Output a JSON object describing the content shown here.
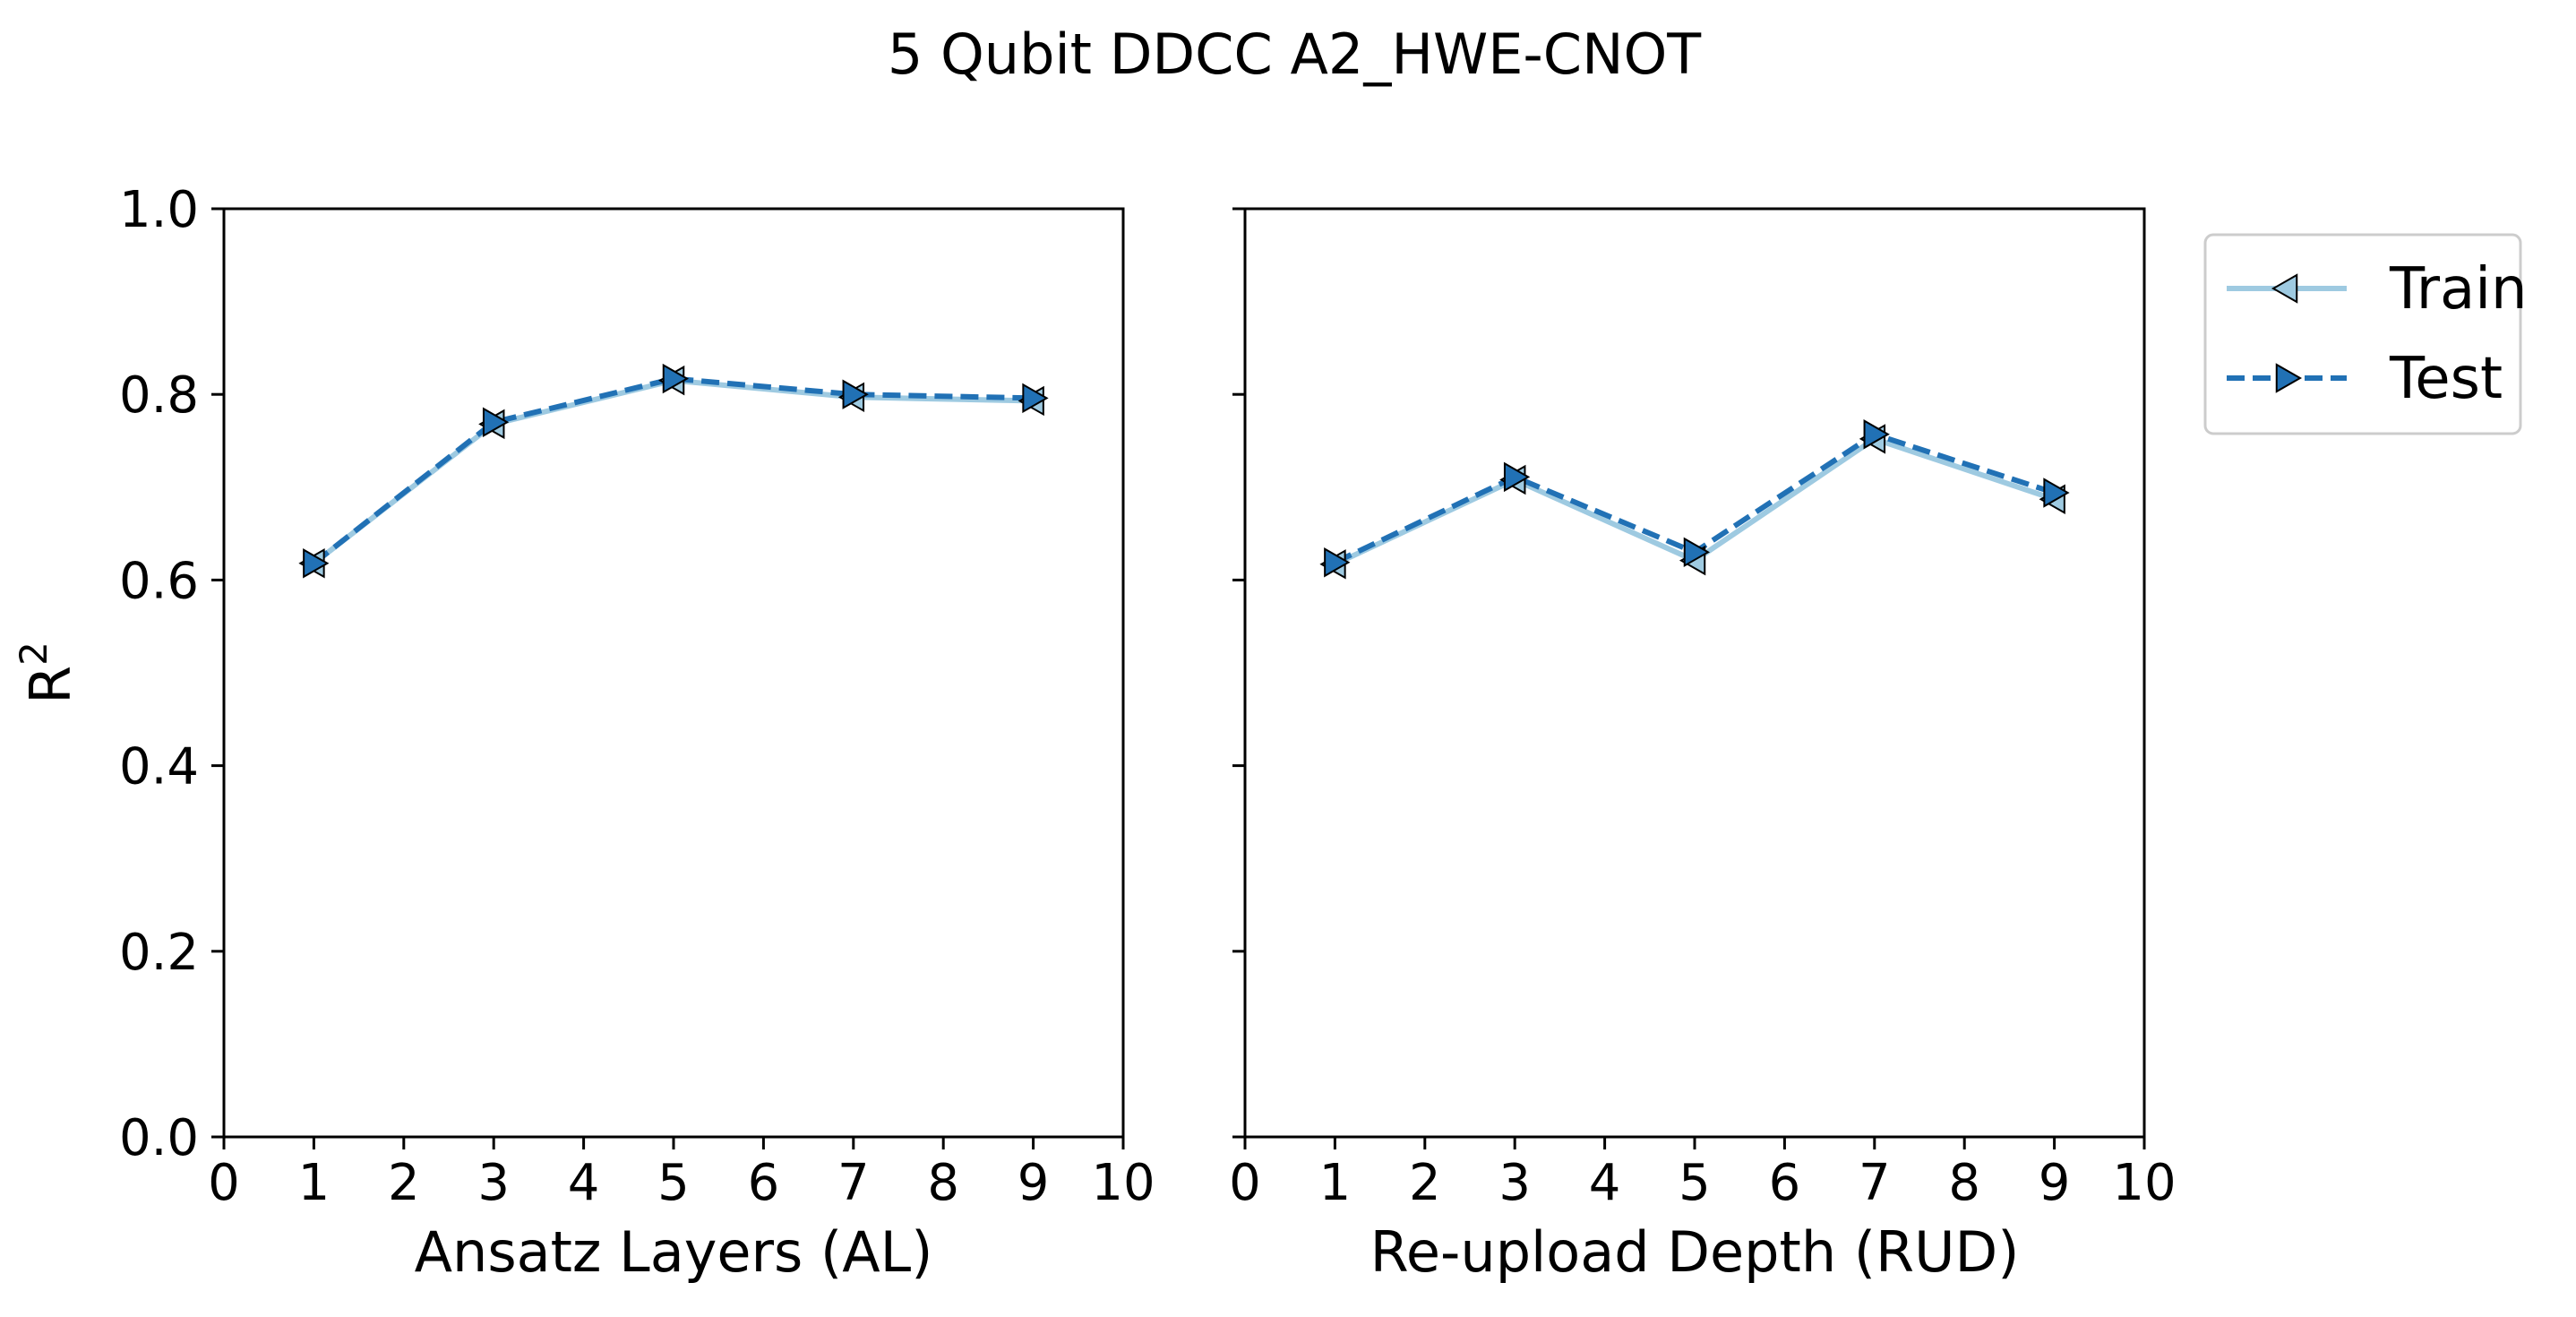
{
  "figure": {
    "title": "5 Qubit DDCC A2_HWE-CNOT"
  },
  "colors": {
    "train": "#9ecae1",
    "test": "#2171b5",
    "marker_edge": "#000000"
  },
  "legend": {
    "placement": "outside-right-top",
    "entries": [
      {
        "label": "Train",
        "series": "train"
      },
      {
        "label": "Test",
        "series": "test"
      }
    ]
  },
  "chart_data": [
    {
      "type": "line",
      "xlabel": "Ansatz Layers (AL)",
      "ylabel": "R",
      "ylabel_superscript": "2",
      "xlim": [
        0,
        10
      ],
      "ylim": [
        0.0,
        1.0
      ],
      "xticks": [
        "0",
        "1",
        "2",
        "3",
        "4",
        "5",
        "6",
        "7",
        "8",
        "9",
        "10"
      ],
      "yticks": [
        "0.0",
        "0.2",
        "0.4",
        "0.6",
        "0.8",
        "1.0"
      ],
      "show_yticklabels": true,
      "grid": false,
      "x": [
        1,
        3,
        5,
        7,
        9
      ],
      "series": [
        {
          "name": "Train",
          "key": "train",
          "values": [
            0.618,
            0.768,
            0.815,
            0.797,
            0.793
          ]
        },
        {
          "name": "Test",
          "key": "test",
          "values": [
            0.618,
            0.77,
            0.817,
            0.8,
            0.796
          ]
        }
      ]
    },
    {
      "type": "line",
      "xlabel": "Re-upload Depth (RUD)",
      "ylabel": "",
      "xlim": [
        0,
        10
      ],
      "ylim": [
        0.0,
        1.0
      ],
      "xticks": [
        "0",
        "1",
        "2",
        "3",
        "4",
        "5",
        "6",
        "7",
        "8",
        "9",
        "10"
      ],
      "yticks": [
        "0.0",
        "0.2",
        "0.4",
        "0.6",
        "0.8",
        "1.0"
      ],
      "show_yticklabels": false,
      "grid": false,
      "x": [
        1,
        3,
        5,
        7,
        9
      ],
      "series": [
        {
          "name": "Train",
          "key": "train",
          "values": [
            0.617,
            0.708,
            0.621,
            0.752,
            0.687
          ]
        },
        {
          "name": "Test",
          "key": "test",
          "values": [
            0.619,
            0.711,
            0.63,
            0.757,
            0.694
          ]
        }
      ]
    }
  ]
}
